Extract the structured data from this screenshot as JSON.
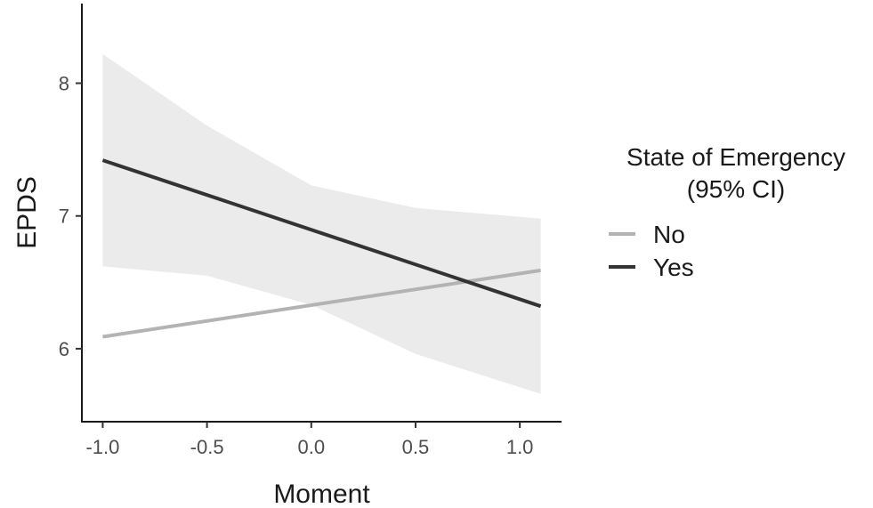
{
  "chart_data": {
    "type": "line",
    "title": "",
    "xlabel": "Moment",
    "ylabel": "EPDS",
    "xlim": [
      -1.1,
      1.2
    ],
    "ylim": [
      5.45,
      8.6
    ],
    "x_ticks": [
      -1.0,
      -0.5,
      0.0,
      0.5,
      1.0
    ],
    "x_tick_labels": [
      "-1.0",
      "-0.5",
      "0.0",
      "0.5",
      "1.0"
    ],
    "y_ticks": [
      6,
      7,
      8
    ],
    "y_tick_labels": [
      "6",
      "7",
      "8"
    ],
    "grid": false,
    "legend": {
      "title_lines": [
        "State of Emergency",
        "(95% CI)"
      ],
      "placement": "right"
    },
    "series": [
      {
        "name": "No",
        "color": "#b3b3b3",
        "x": [
          -1.0,
          1.1
        ],
        "y": [
          6.09,
          6.59
        ]
      },
      {
        "name": "Yes",
        "color": "#333333",
        "x": [
          -1.0,
          1.1
        ],
        "y": [
          7.42,
          6.32
        ],
        "ci_x": [
          -1.0,
          -0.5,
          0.0,
          0.5,
          1.1
        ],
        "ci_lower": [
          6.62,
          6.55,
          6.33,
          5.96,
          5.66
        ],
        "ci_upper": [
          8.22,
          7.68,
          7.23,
          7.06,
          6.98
        ]
      }
    ],
    "ci_color": "#ebebeb"
  }
}
